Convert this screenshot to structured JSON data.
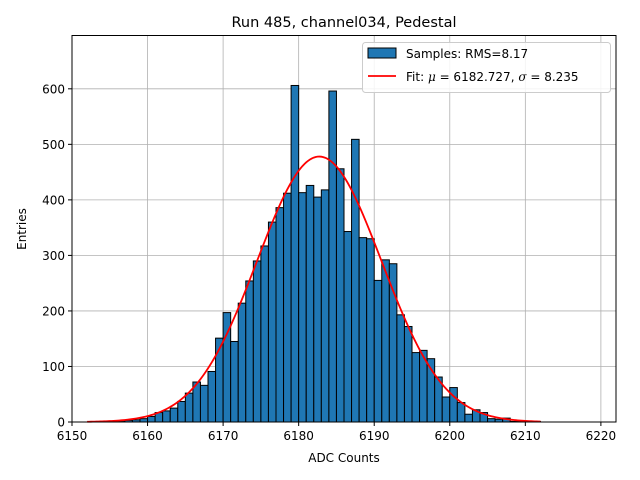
{
  "chart_data": {
    "type": "bar",
    "title": "Run 485, channel034, Pedestal",
    "xlabel": "ADC Counts",
    "ylabel": "Entries",
    "xlim": [
      6150,
      6222
    ],
    "ylim": [
      0,
      696
    ],
    "xticks": [
      6150,
      6160,
      6170,
      6180,
      6190,
      6200,
      6210,
      6220
    ],
    "yticks": [
      0,
      100,
      200,
      300,
      400,
      500,
      600
    ],
    "grid": true,
    "legend_position": "top-right",
    "colors": {
      "bars": "#1f77b4",
      "bar_edge": "#000000",
      "fit": "#ff0000",
      "grid": "#b0b0b0"
    },
    "series": [
      {
        "name": "Samples: RMS=8.17",
        "kind": "histogram",
        "bin_width": 1,
        "bin_starts": [
          6155,
          6156,
          6157,
          6158,
          6159,
          6160,
          6161,
          6162,
          6163,
          6164,
          6165,
          6166,
          6167,
          6168,
          6169,
          6170,
          6171,
          6172,
          6173,
          6174,
          6175,
          6176,
          6177,
          6178,
          6179,
          6180,
          6181,
          6182,
          6183,
          6184,
          6185,
          6186,
          6187,
          6188,
          6189,
          6190,
          6191,
          6192,
          6193,
          6194,
          6195,
          6196,
          6197,
          6198,
          6199,
          6200,
          6201,
          6202,
          6203,
          6204,
          6205,
          6206,
          6207,
          6208,
          6209,
          6210,
          6211
        ],
        "values": [
          1,
          2,
          3,
          4,
          6,
          10,
          17,
          20,
          25,
          37,
          52,
          72,
          66,
          91,
          151,
          197,
          145,
          214,
          254,
          290,
          317,
          360,
          386,
          412,
          606,
          413,
          426,
          405,
          418,
          596,
          456,
          343,
          509,
          332,
          330,
          255,
          292,
          285,
          193,
          172,
          125,
          129,
          114,
          81,
          45,
          62,
          35,
          14,
          22,
          17,
          6,
          5,
          7,
          1,
          1,
          0,
          1
        ]
      },
      {
        "name": "Fit: μ = 6182.727, σ = 8.235",
        "kind": "gaussian",
        "mu": 6182.727,
        "sigma": 8.235,
        "amplitude": 478,
        "x_range": [
          6152,
          6212
        ]
      }
    ],
    "legend": [
      {
        "label_prefix": "Samples: RMS=8.17"
      },
      {
        "label_prefix": "Fit: ",
        "sym1": "μ",
        "mid": " = 6182.727, ",
        "sym2": "σ",
        "suffix": " = 8.235"
      }
    ]
  }
}
